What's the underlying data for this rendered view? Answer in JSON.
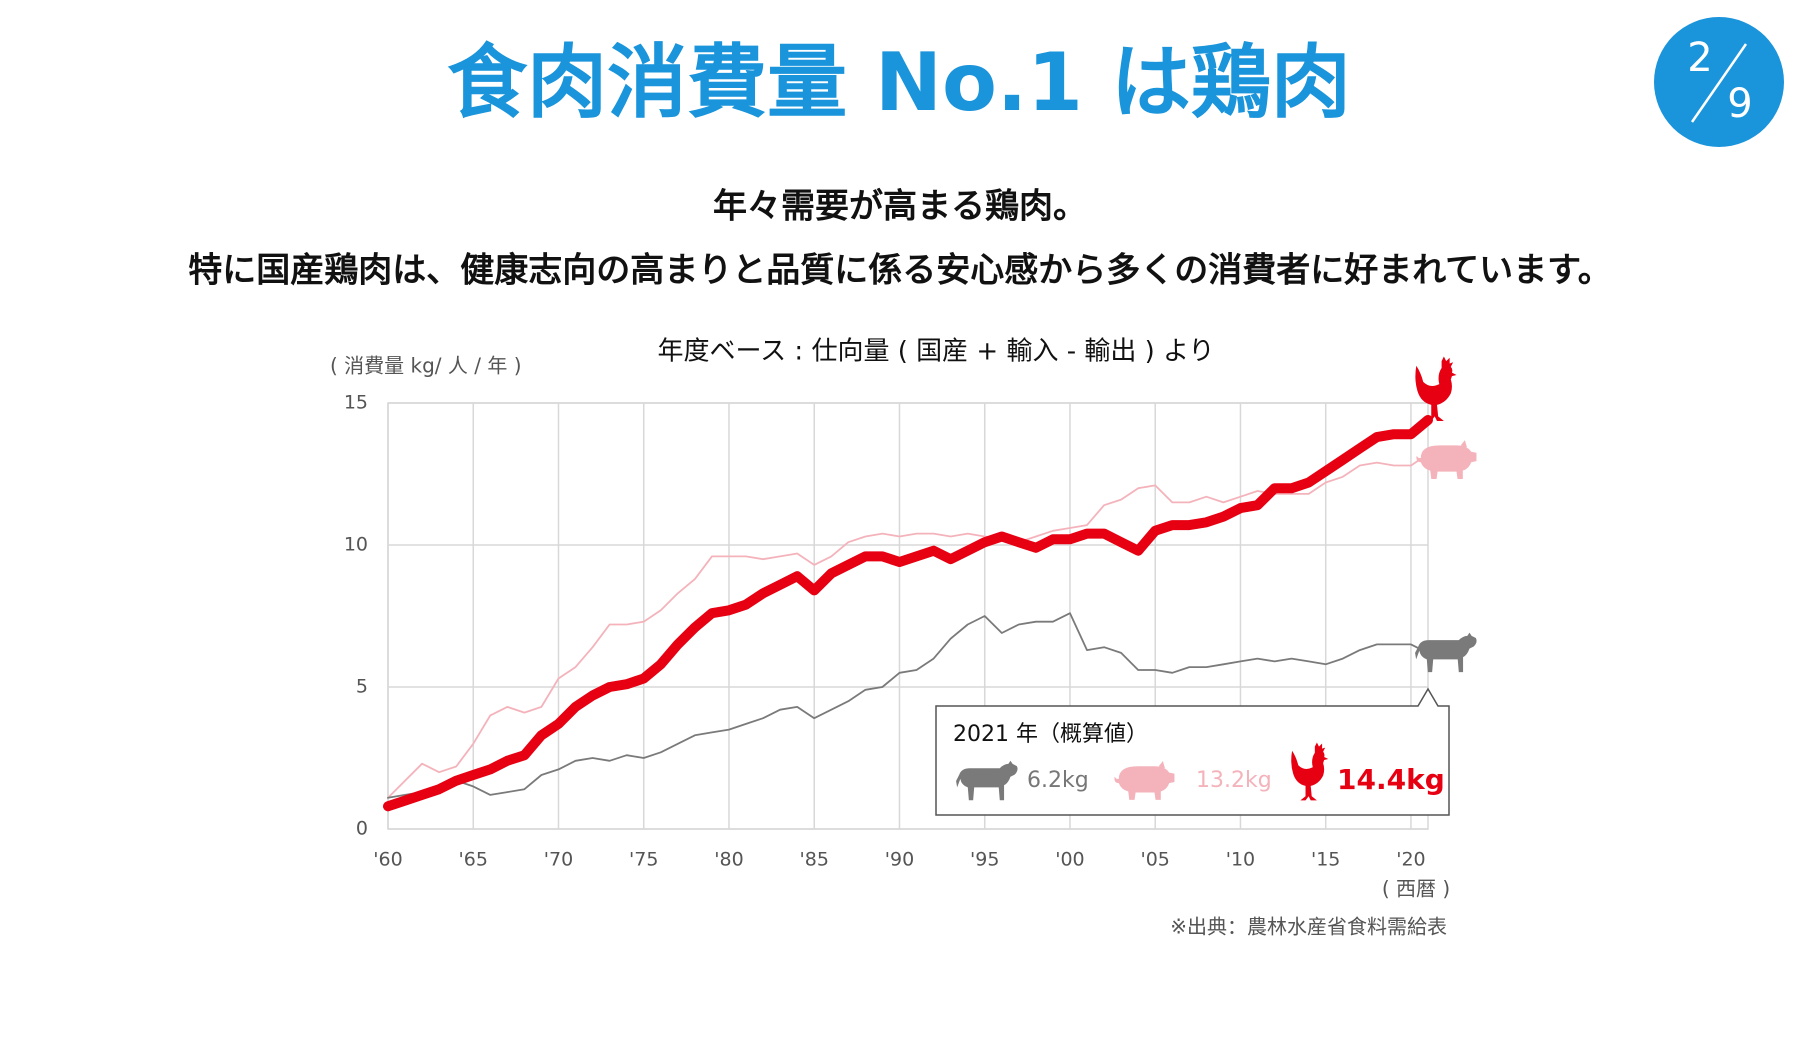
{
  "header": {
    "title": "食肉消費量 No.1 は鶏肉",
    "page": {
      "current": "2",
      "total": "9"
    },
    "lead": [
      "年々需要が高まる鶏肉。",
      "特に国産鶏肉は、健康志向の高まりと品質に係る安心感から多くの消費者に好まれています。"
    ]
  },
  "chart_data": {
    "type": "line",
    "title": "年度ベース : 仕向量 ( 国産 + 輸入 - 輸出 ) より",
    "y_label": "( 消費量 kg/ 人 / 年 )",
    "x_label": "( 西暦 )",
    "source": "※出典：農林水産省食料需給表",
    "callout_title": "2021 年（概算値）",
    "x": [
      1960,
      1961,
      1962,
      1963,
      1964,
      1965,
      1966,
      1967,
      1968,
      1969,
      1970,
      1971,
      1972,
      1973,
      1974,
      1975,
      1976,
      1977,
      1978,
      1979,
      1980,
      1981,
      1982,
      1983,
      1984,
      1985,
      1986,
      1987,
      1988,
      1989,
      1990,
      1991,
      1992,
      1993,
      1994,
      1995,
      1996,
      1997,
      1998,
      1999,
      2000,
      2001,
      2002,
      2003,
      2004,
      2005,
      2006,
      2007,
      2008,
      2009,
      2010,
      2011,
      2012,
      2013,
      2014,
      2015,
      2016,
      2017,
      2018,
      2019,
      2020,
      2021
    ],
    "xlim": [
      1960,
      2021
    ],
    "xticks": [
      {
        "value": 1960,
        "label": "'60"
      },
      {
        "value": 1965,
        "label": "'65"
      },
      {
        "value": 1970,
        "label": "'70"
      },
      {
        "value": 1975,
        "label": "'75"
      },
      {
        "value": 1980,
        "label": "'80"
      },
      {
        "value": 1985,
        "label": "'85"
      },
      {
        "value": 1990,
        "label": "'90"
      },
      {
        "value": 1995,
        "label": "'95"
      },
      {
        "value": 2000,
        "label": "'00"
      },
      {
        "value": 2005,
        "label": "'05"
      },
      {
        "value": 2010,
        "label": "'10"
      },
      {
        "value": 2015,
        "label": "'15"
      },
      {
        "value": 2020,
        "label": "'20"
      }
    ],
    "ylim": [
      0,
      15
    ],
    "yticks": [
      0,
      5,
      10,
      15
    ],
    "grid": true,
    "series": [
      {
        "color": "#7a7a7a",
        "icon": "cow",
        "values": [
          1.1,
          1.2,
          1.3,
          1.5,
          1.7,
          1.5,
          1.2,
          1.3,
          1.4,
          1.9,
          2.1,
          2.4,
          2.5,
          2.4,
          2.6,
          2.5,
          2.7,
          3.0,
          3.3,
          3.4,
          3.5,
          3.7,
          3.9,
          4.2,
          4.3,
          3.9,
          4.2,
          4.5,
          4.9,
          5.0,
          5.5,
          5.6,
          6.0,
          6.7,
          7.2,
          7.5,
          6.9,
          7.2,
          7.3,
          7.3,
          7.6,
          6.3,
          6.4,
          6.2,
          5.6,
          5.6,
          5.5,
          5.7,
          5.7,
          5.8,
          5.9,
          6.0,
          5.9,
          6.0,
          5.9,
          5.8,
          6.0,
          6.3,
          6.5,
          6.5,
          6.5,
          6.2
        ],
        "value_labels": [
          null,
          null,
          null,
          null,
          null,
          null,
          null,
          null,
          null,
          null,
          null,
          null,
          null,
          null,
          null,
          null,
          null,
          null,
          null,
          null,
          null,
          null,
          null,
          null,
          null,
          null,
          null,
          null,
          null,
          null,
          null,
          null,
          null,
          null,
          null,
          null,
          null,
          null,
          null,
          null,
          null,
          null,
          null,
          null,
          null,
          null,
          null,
          null,
          null,
          null,
          null,
          null,
          null,
          null,
          null,
          null,
          null,
          null,
          null,
          null,
          null,
          "6.2kg"
        ]
      },
      {
        "color": "#f4b3bb",
        "icon": "pig",
        "values": [
          1.1,
          1.7,
          2.3,
          2.0,
          2.2,
          3.0,
          4.0,
          4.3,
          4.1,
          4.3,
          5.3,
          5.7,
          6.4,
          7.2,
          7.2,
          7.3,
          7.7,
          8.3,
          8.8,
          9.6,
          9.6,
          9.6,
          9.5,
          9.6,
          9.7,
          9.3,
          9.6,
          10.1,
          10.3,
          10.4,
          10.3,
          10.4,
          10.4,
          10.3,
          10.4,
          10.3,
          10.2,
          10.1,
          10.3,
          10.5,
          10.6,
          10.7,
          11.4,
          11.6,
          12.0,
          12.1,
          11.5,
          11.5,
          11.7,
          11.5,
          11.7,
          11.9,
          11.8,
          11.8,
          11.8,
          12.2,
          12.4,
          12.8,
          12.9,
          12.8,
          12.8,
          13.2
        ],
        "value_labels": [
          null,
          null,
          null,
          null,
          null,
          null,
          null,
          null,
          null,
          null,
          null,
          null,
          null,
          null,
          null,
          null,
          null,
          null,
          null,
          null,
          null,
          null,
          null,
          null,
          null,
          null,
          null,
          null,
          null,
          null,
          null,
          null,
          null,
          null,
          null,
          null,
          null,
          null,
          null,
          null,
          null,
          null,
          null,
          null,
          null,
          null,
          null,
          null,
          null,
          null,
          null,
          null,
          null,
          null,
          null,
          null,
          null,
          null,
          null,
          null,
          null,
          "13.2kg"
        ]
      },
      {
        "color": "#e60012",
        "icon": "chicken",
        "values": [
          0.8,
          1.0,
          1.2,
          1.4,
          1.7,
          1.9,
          2.1,
          2.4,
          2.6,
          3.3,
          3.7,
          4.3,
          4.7,
          5.0,
          5.1,
          5.3,
          5.8,
          6.5,
          7.1,
          7.6,
          7.7,
          7.9,
          8.3,
          8.6,
          8.9,
          8.4,
          9.0,
          9.3,
          9.6,
          9.6,
          9.4,
          9.6,
          9.8,
          9.5,
          9.8,
          10.1,
          10.3,
          10.1,
          9.9,
          10.2,
          10.2,
          10.4,
          10.4,
          10.1,
          9.8,
          10.5,
          10.7,
          10.7,
          10.8,
          11.0,
          11.3,
          11.4,
          12.0,
          12.0,
          12.2,
          12.6,
          13.0,
          13.4,
          13.8,
          13.9,
          13.9,
          14.4
        ],
        "value_labels": [
          null,
          null,
          null,
          null,
          null,
          null,
          null,
          null,
          null,
          null,
          null,
          null,
          null,
          null,
          null,
          null,
          null,
          null,
          null,
          null,
          null,
          null,
          null,
          null,
          null,
          null,
          null,
          null,
          null,
          null,
          null,
          null,
          null,
          null,
          null,
          null,
          null,
          null,
          null,
          null,
          null,
          null,
          null,
          null,
          null,
          null,
          null,
          null,
          null,
          null,
          null,
          null,
          null,
          null,
          null,
          null,
          null,
          null,
          null,
          null,
          null,
          "14.4kg"
        ]
      }
    ]
  }
}
